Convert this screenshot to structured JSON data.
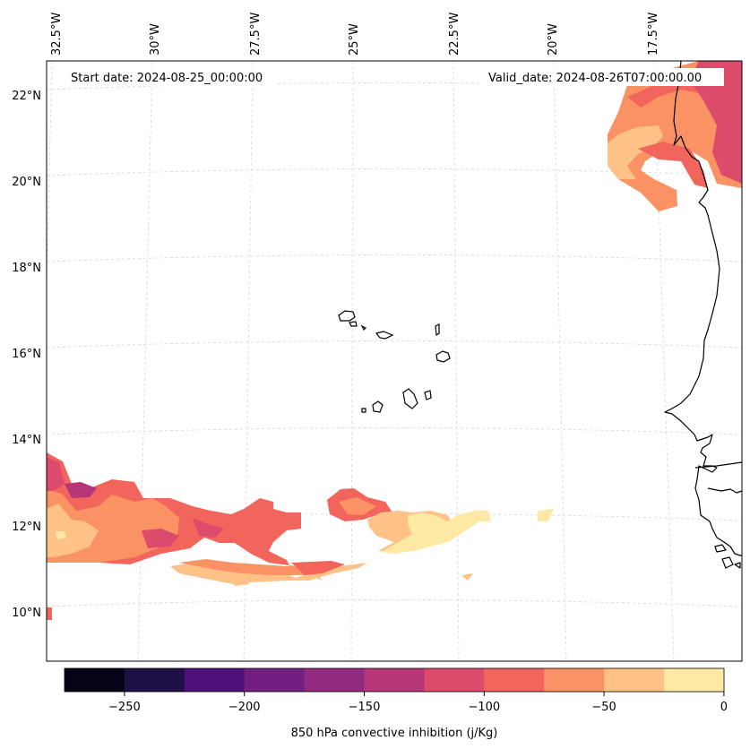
{
  "header": {
    "start_date": "Start date: 2024-08-25_00:00:00",
    "valid_date": "Valid_date: 2024-08-26T07:00:00.00"
  },
  "axes": {
    "lon_ticks": [
      "32.5°W",
      "30°W",
      "27.5°W",
      "25°W",
      "22.5°W",
      "20°W",
      "17.5°W"
    ],
    "lat_ticks": [
      "22°N",
      "20°N",
      "18°N",
      "16°N",
      "14°N",
      "12°N",
      "10°N"
    ]
  },
  "colorbar": {
    "label": "850 hPa convective inhibition (j/Kg)",
    "tick_labels": [
      "−250",
      "−200",
      "−150",
      "−100",
      "−50",
      "0"
    ],
    "levels": [
      -275,
      -250,
      -225,
      -200,
      -175,
      -150,
      -125,
      -100,
      -75,
      -50,
      -25,
      0
    ],
    "colors": [
      "#050316",
      "#1f1145",
      "#4e117b",
      "#721f81",
      "#922b7f",
      "#b7367a",
      "#dc4a6c",
      "#f2655c",
      "#fa9264",
      "#fec287",
      "#fde9a4"
    ]
  },
  "map_colors": {
    "ocean": "#ffffff",
    "coastline": "#000000",
    "gridline": "#d6d6d6"
  }
}
